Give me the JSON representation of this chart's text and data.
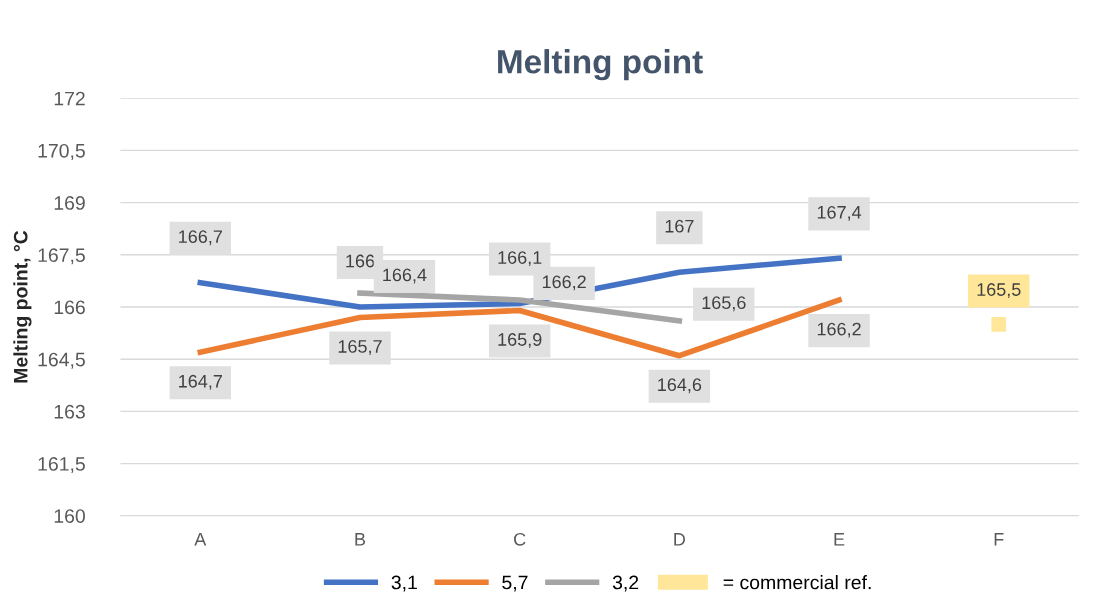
{
  "chart_data": {
    "type": "line",
    "title": "Melting point",
    "ylabel": "Melting point, °C",
    "categories": [
      "A",
      "B",
      "C",
      "D",
      "E",
      "F"
    ],
    "series": [
      {
        "name": "3,1",
        "color": "#4472c4",
        "values": [
          166.7,
          166,
          166.1,
          167,
          167.4,
          null
        ],
        "value_labels": [
          "166,7",
          "166",
          "166,1",
          "167",
          "167,4",
          null
        ]
      },
      {
        "name": "5,7",
        "color": "#ed7d31",
        "values": [
          164.7,
          165.7,
          165.9,
          164.6,
          166.2,
          null
        ],
        "value_labels": [
          "164,7",
          "165,7",
          "165,9",
          "164,6",
          "166,2",
          null
        ]
      },
      {
        "name": "3,2",
        "color": "#a5a5a5",
        "values": [
          null,
          166.4,
          166.2,
          165.6,
          null,
          null
        ],
        "value_labels": [
          null,
          "166,4",
          "166,2",
          "165,6",
          null,
          null
        ]
      },
      {
        "name": "= commercial ref.",
        "type": "scatter",
        "marker": "square",
        "color": "#ffe699",
        "values": [
          null,
          null,
          null,
          null,
          null,
          165.5
        ],
        "value_labels": [
          null,
          null,
          null,
          null,
          null,
          "165,5"
        ]
      }
    ],
    "ylim": [
      160,
      172
    ],
    "yticks": [
      160,
      {
        "value": 161.5,
        "label": "161,5"
      },
      163,
      {
        "value": 164.5,
        "label": "164,5"
      },
      166,
      {
        "value": 167.5,
        "label": "167,5"
      },
      169,
      {
        "value": 170.5,
        "label": "170,5"
      },
      172
    ],
    "grid": "y",
    "legend": "bottom",
    "marker": "none",
    "line_style": "solid"
  }
}
